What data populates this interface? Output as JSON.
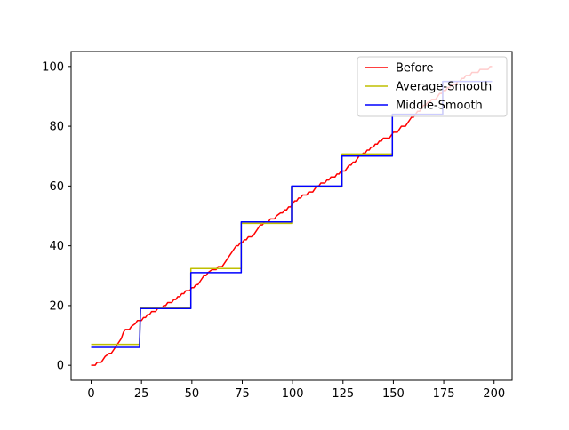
{
  "chart_data": {
    "type": "line",
    "title": "",
    "xlabel": "",
    "ylabel": "",
    "xlim": [
      -9.95,
      208.95
    ],
    "ylim": [
      -5,
      105
    ],
    "x_ticks": [
      0,
      25,
      50,
      75,
      100,
      125,
      150,
      175,
      200
    ],
    "y_ticks": [
      0,
      20,
      40,
      60,
      80,
      100
    ],
    "grid": false,
    "legend_position": "top-right",
    "series": [
      {
        "name": "Before",
        "color": "#ff0000",
        "points": [
          [
            0,
            0
          ],
          [
            2,
            0
          ],
          [
            3,
            1
          ],
          [
            5,
            1
          ],
          [
            6,
            2
          ],
          [
            7,
            3
          ],
          [
            9,
            4
          ],
          [
            10,
            4
          ],
          [
            11,
            5
          ],
          [
            12,
            6
          ],
          [
            13,
            7
          ],
          [
            14,
            8
          ],
          [
            15,
            9
          ],
          [
            16,
            11
          ],
          [
            17,
            12
          ],
          [
            19,
            12
          ],
          [
            20,
            13
          ],
          [
            22,
            14
          ],
          [
            23,
            15
          ],
          [
            25,
            15
          ],
          [
            26,
            16
          ],
          [
            27,
            16
          ],
          [
            28,
            17
          ],
          [
            29,
            17
          ],
          [
            30,
            18
          ],
          [
            32,
            18
          ],
          [
            33,
            19
          ],
          [
            35,
            19
          ],
          [
            36,
            20
          ],
          [
            37,
            20
          ],
          [
            38,
            21
          ],
          [
            40,
            21
          ],
          [
            41,
            22
          ],
          [
            42,
            22
          ],
          [
            43,
            23
          ],
          [
            44,
            23
          ],
          [
            45,
            24
          ],
          [
            46,
            24
          ],
          [
            47,
            25
          ],
          [
            48,
            25
          ],
          [
            49,
            25
          ],
          [
            50,
            26
          ],
          [
            51,
            26
          ],
          [
            52,
            27
          ],
          [
            53,
            27
          ],
          [
            54,
            28
          ],
          [
            55,
            29
          ],
          [
            56,
            30
          ],
          [
            57,
            30
          ],
          [
            58,
            31
          ],
          [
            60,
            32
          ],
          [
            62,
            32
          ],
          [
            63,
            33
          ],
          [
            65,
            33
          ],
          [
            66,
            34
          ],
          [
            67,
            35
          ],
          [
            68,
            36
          ],
          [
            69,
            37
          ],
          [
            70,
            38
          ],
          [
            71,
            39
          ],
          [
            72,
            40
          ],
          [
            73,
            40
          ],
          [
            74,
            41
          ],
          [
            75,
            41
          ],
          [
            76,
            42
          ],
          [
            77,
            42
          ],
          [
            78,
            43
          ],
          [
            80,
            43
          ],
          [
            81,
            44
          ],
          [
            82,
            45
          ],
          [
            83,
            46
          ],
          [
            84,
            47
          ],
          [
            85,
            47
          ],
          [
            86,
            48
          ],
          [
            88,
            48
          ],
          [
            89,
            49
          ],
          [
            91,
            49
          ],
          [
            92,
            50
          ],
          [
            94,
            51
          ],
          [
            95,
            51
          ],
          [
            96,
            52
          ],
          [
            97,
            52
          ],
          [
            98,
            53
          ],
          [
            99,
            53
          ],
          [
            100,
            54
          ],
          [
            101,
            55
          ],
          [
            102,
            55
          ],
          [
            103,
            56
          ],
          [
            104,
            56
          ],
          [
            105,
            57
          ],
          [
            107,
            57
          ],
          [
            108,
            58
          ],
          [
            110,
            58
          ],
          [
            111,
            59
          ],
          [
            112,
            60
          ],
          [
            113,
            60
          ],
          [
            114,
            61
          ],
          [
            116,
            61
          ],
          [
            117,
            62
          ],
          [
            118,
            62
          ],
          [
            119,
            63
          ],
          [
            121,
            63
          ],
          [
            122,
            64
          ],
          [
            123,
            64
          ],
          [
            124,
            65
          ],
          [
            126,
            65
          ],
          [
            127,
            66
          ],
          [
            128,
            67
          ],
          [
            129,
            67
          ],
          [
            130,
            68
          ],
          [
            131,
            68
          ],
          [
            132,
            69
          ],
          [
            133,
            70
          ],
          [
            134,
            70
          ],
          [
            135,
            71
          ],
          [
            136,
            71
          ],
          [
            137,
            72
          ],
          [
            138,
            72
          ],
          [
            139,
            73
          ],
          [
            140,
            73
          ],
          [
            141,
            74
          ],
          [
            142,
            74
          ],
          [
            143,
            75
          ],
          [
            144,
            75
          ],
          [
            145,
            76
          ],
          [
            148,
            76
          ],
          [
            149,
            77
          ],
          [
            150,
            78
          ],
          [
            152,
            78
          ],
          [
            153,
            79
          ],
          [
            154,
            80
          ],
          [
            156,
            80
          ],
          [
            157,
            81
          ],
          [
            158,
            82
          ],
          [
            159,
            83
          ],
          [
            160,
            83
          ],
          [
            161,
            84
          ],
          [
            162,
            85
          ],
          [
            163,
            85
          ],
          [
            164,
            86
          ],
          [
            165,
            87
          ],
          [
            166,
            87
          ],
          [
            167,
            88
          ],
          [
            168,
            88
          ],
          [
            169,
            89
          ],
          [
            171,
            89
          ],
          [
            172,
            90
          ],
          [
            173,
            91
          ],
          [
            174,
            91
          ],
          [
            175,
            92
          ],
          [
            176,
            92
          ],
          [
            177,
            93
          ],
          [
            178,
            93
          ],
          [
            179,
            94
          ],
          [
            181,
            94
          ],
          [
            182,
            95
          ],
          [
            183,
            95
          ],
          [
            184,
            96
          ],
          [
            185,
            96
          ],
          [
            186,
            97
          ],
          [
            188,
            97
          ],
          [
            189,
            98
          ],
          [
            191,
            98
          ],
          [
            192,
            98
          ],
          [
            193,
            99
          ],
          [
            195,
            99
          ],
          [
            196,
            99
          ],
          [
            197,
            99
          ],
          [
            198,
            100
          ],
          [
            199,
            100
          ]
        ]
      },
      {
        "name": "Average-Smooth",
        "color": "#bfbf00",
        "points": [
          [
            0,
            7
          ],
          [
            24,
            7
          ],
          [
            24.5,
            19.2
          ],
          [
            49.5,
            19.2
          ],
          [
            49.5,
            32.4
          ],
          [
            74.5,
            32.4
          ],
          [
            74.5,
            47.5
          ],
          [
            99.5,
            47.5
          ],
          [
            99.5,
            59.7
          ],
          [
            124.5,
            59.7
          ],
          [
            124.5,
            70.7
          ],
          [
            149.5,
            70.7
          ],
          [
            149.5,
            84
          ],
          [
            174.5,
            84
          ],
          [
            174.5,
            95
          ],
          [
            199,
            95
          ]
        ]
      },
      {
        "name": "Middle-Smooth",
        "color": "#0000ff",
        "points": [
          [
            0,
            6
          ],
          [
            24,
            6
          ],
          [
            24.5,
            19
          ],
          [
            49.5,
            19
          ],
          [
            49.5,
            31
          ],
          [
            74.5,
            31
          ],
          [
            74.5,
            48
          ],
          [
            99.5,
            48
          ],
          [
            99.5,
            60
          ],
          [
            124.5,
            60
          ],
          [
            124.5,
            70
          ],
          [
            149.5,
            70
          ],
          [
            149.5,
            84
          ],
          [
            174.5,
            84
          ],
          [
            174.5,
            95
          ],
          [
            199,
            95
          ]
        ]
      }
    ]
  }
}
